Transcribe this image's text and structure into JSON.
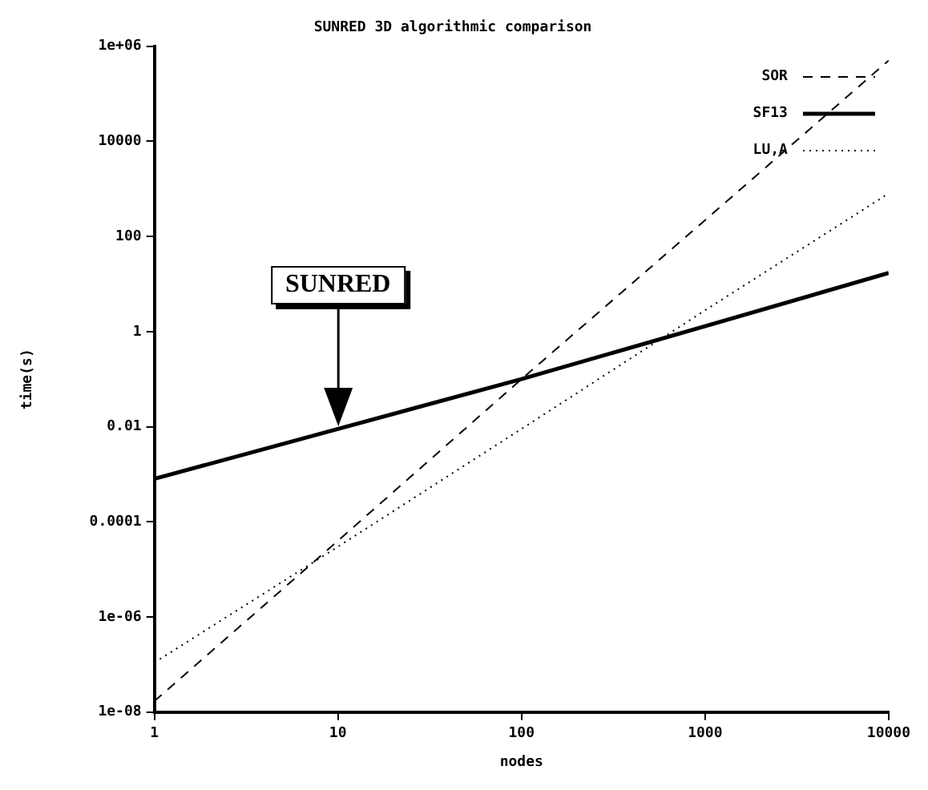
{
  "chart_data": {
    "type": "line",
    "title": "SUNRED 3D algorithmic comparison",
    "xlabel": "nodes",
    "ylabel": "time(s)",
    "x": [
      1,
      10,
      100,
      1000,
      10000
    ],
    "series": [
      {
        "name": "SOR",
        "color": "#000000",
        "line_style": "dashed",
        "values": [
          1.7e-08,
          4e-05,
          0.1,
          220,
          500000
        ]
      },
      {
        "name": "SF13",
        "color": "#000000",
        "line_style": "solid",
        "values": [
          0.0008,
          0.009,
          0.1,
          1.3,
          17
        ]
      },
      {
        "name": "LU,A",
        "color": "#000000",
        "line_style": "dotted",
        "values": [
          1.1e-07,
          3e-05,
          0.009,
          2.8,
          800
        ]
      }
    ],
    "log": "xy",
    "xlim": [
      1,
      10000
    ],
    "ylim": [
      1e-08,
      1000000
    ],
    "xticks": [
      1,
      10,
      100,
      1000,
      10000
    ],
    "yticks": [
      {
        "value": 1e-08,
        "label": "1e-08"
      },
      {
        "value": 1e-06,
        "label": "1e-06"
      },
      0.0001,
      0.01,
      1,
      100,
      10000,
      {
        "value": 1000000,
        "label": "1e+06"
      }
    ],
    "grid": false,
    "legend": "top right",
    "marker": "none",
    "annotations": [
      "SUNRED"
    ]
  }
}
